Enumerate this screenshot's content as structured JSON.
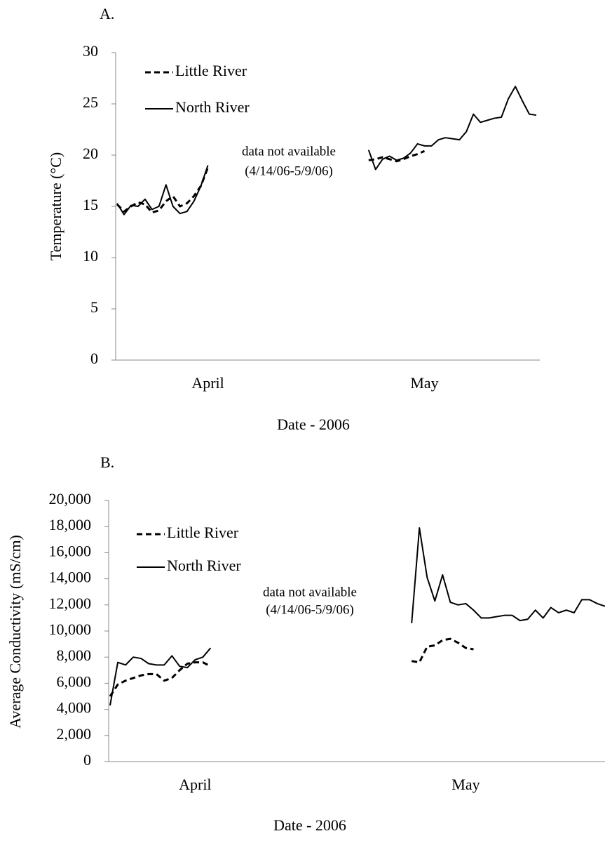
{
  "chart_data": [
    {
      "type": "line",
      "title": "A.",
      "ylabel": "Temperature (°C)",
      "xlabel": "Date - 2006",
      "annotations": [
        "data not available",
        "(4/14/06-5/9/06)"
      ],
      "legend": "top-left",
      "grid": false,
      "ylim": [
        0,
        30
      ],
      "yticks": [
        0,
        5,
        10,
        15,
        20,
        25,
        30
      ],
      "categories": [
        null,
        null,
        null,
        null,
        null,
        null,
        null,
        null,
        null,
        null,
        null,
        null,
        null,
        "April",
        null,
        null,
        null,
        null,
        null,
        null,
        null,
        null,
        null,
        null,
        null,
        null,
        null,
        null,
        null,
        null,
        null,
        null,
        null,
        null,
        null,
        null,
        null,
        null,
        null,
        null,
        null,
        null,
        null,
        null,
        "May",
        null,
        null,
        null,
        null,
        null,
        null,
        null,
        null,
        null,
        null,
        null,
        null,
        null,
        null,
        null,
        null
      ],
      "series": [
        {
          "name": "Little River",
          "color": "#000000",
          "style": "dashed",
          "values": [
            15.2,
            14.5,
            15.0,
            15.4,
            15.2,
            14.4,
            14.6,
            15.5,
            16.0,
            15.0,
            15.3,
            16.0,
            17.0,
            18.8,
            null,
            null,
            null,
            null,
            null,
            null,
            null,
            null,
            null,
            null,
            null,
            null,
            null,
            null,
            null,
            null,
            null,
            null,
            null,
            null,
            null,
            null,
            19.5,
            19.6,
            19.8,
            19.6,
            19.4,
            19.6,
            19.9,
            20.1,
            20.4,
            null,
            null,
            null,
            null,
            null,
            null,
            null,
            null,
            null,
            null,
            null,
            null,
            null,
            null,
            null,
            null
          ]
        },
        {
          "name": "North River",
          "color": "#000000",
          "style": "solid",
          "values": [
            15.3,
            14.2,
            15.1,
            15.0,
            15.7,
            14.7,
            15.0,
            17.1,
            15.0,
            14.3,
            14.5,
            15.5,
            17.0,
            19.0,
            null,
            null,
            null,
            null,
            null,
            null,
            null,
            null,
            null,
            null,
            null,
            null,
            null,
            null,
            null,
            null,
            null,
            null,
            null,
            null,
            null,
            null,
            20.5,
            18.6,
            19.6,
            19.9,
            19.5,
            19.7,
            20.2,
            21.1,
            20.9,
            20.9,
            21.5,
            21.7,
            21.6,
            21.5,
            22.3,
            24.0,
            23.2,
            23.4,
            23.6,
            23.7,
            25.5,
            26.7,
            25.3,
            24.0,
            23.9
          ]
        }
      ]
    },
    {
      "type": "line",
      "title": "B.",
      "ylabel": "Average Conductivity (mS/cm)",
      "xlabel": "Date - 2006",
      "annotations": [
        "data not available",
        "(4/14/06-5/9/06)"
      ],
      "legend": "top-left",
      "grid": false,
      "ylim": [
        0,
        20000
      ],
      "yticks": [
        0,
        {
          "value": 2000,
          "label": "2,000"
        },
        {
          "value": 4000,
          "label": "4,000"
        },
        {
          "value": 6000,
          "label": "6,000"
        },
        {
          "value": 8000,
          "label": "8,000"
        },
        {
          "value": 10000,
          "label": "10,000"
        },
        {
          "value": 12000,
          "label": "12,000"
        },
        {
          "value": 14000,
          "label": "14,000"
        },
        {
          "value": 16000,
          "label": "16,000"
        },
        {
          "value": 18000,
          "label": "18,000"
        },
        {
          "value": 20000,
          "label": "20,000"
        }
      ],
      "categories": [
        null,
        null,
        null,
        null,
        null,
        null,
        null,
        null,
        null,
        null,
        null,
        "April",
        null,
        null,
        null,
        null,
        null,
        null,
        null,
        null,
        null,
        null,
        null,
        null,
        null,
        null,
        null,
        null,
        null,
        null,
        null,
        null,
        null,
        null,
        null,
        null,
        null,
        null,
        null,
        null,
        null,
        null,
        null,
        null,
        null,
        null,
        "May",
        null,
        null,
        null,
        null,
        null,
        null,
        null,
        null,
        null,
        null,
        null,
        null,
        null,
        null,
        null,
        null,
        null,
        null
      ],
      "series": [
        {
          "name": "Little River",
          "color": "#000000",
          "style": "dashed",
          "values": [
            5000,
            5900,
            6200,
            6400,
            6600,
            6700,
            6700,
            6200,
            6400,
            7000,
            7500,
            7600,
            7600,
            7300,
            null,
            null,
            null,
            null,
            null,
            null,
            null,
            null,
            null,
            null,
            null,
            null,
            null,
            null,
            null,
            null,
            null,
            null,
            null,
            null,
            null,
            null,
            null,
            null,
            null,
            7700,
            7600,
            8800,
            8900,
            9300,
            9400,
            9100,
            8700,
            8600,
            null,
            null,
            null,
            null,
            null,
            null,
            null,
            null,
            null,
            null,
            null,
            null,
            null,
            null,
            null,
            null,
            null
          ]
        },
        {
          "name": "North River",
          "color": "#000000",
          "style": "solid",
          "values": [
            4300,
            7600,
            7400,
            8000,
            7900,
            7500,
            7400,
            7400,
            8100,
            7300,
            7200,
            7800,
            8000,
            8700,
            null,
            null,
            null,
            null,
            null,
            null,
            null,
            null,
            null,
            null,
            null,
            null,
            null,
            null,
            null,
            null,
            null,
            null,
            null,
            null,
            null,
            null,
            null,
            null,
            null,
            10600,
            17900,
            14100,
            12300,
            14300,
            12200,
            12000,
            12100,
            11600,
            11000,
            11000,
            11100,
            11200,
            11200,
            10800,
            10900,
            11600,
            11000,
            11800,
            11400,
            11600,
            11400,
            12400,
            12400,
            12100,
            11900
          ]
        }
      ]
    }
  ]
}
